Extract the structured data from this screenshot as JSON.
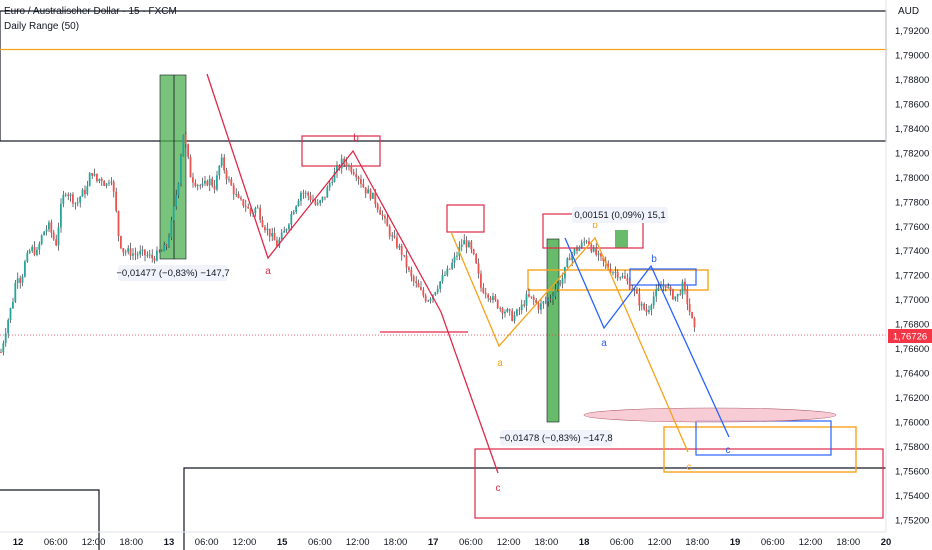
{
  "header": {
    "title": "Euro / Australischer Dollar · 15 · FXCM",
    "indicator": "Daily Range (50)",
    "currency": "AUD"
  },
  "colors": {
    "up": "#26a69a",
    "down": "#ef5350",
    "pattern_red": "#e0294a",
    "orange": "#f7a21b",
    "blue": "#2962ff",
    "black": "#131722",
    "green_fill": "#4caf50",
    "price_tag": "#f23645"
  },
  "chart_data": {
    "type": "candlestick",
    "symbol": "EUR/AUD",
    "timeframe": "15",
    "ylim": [
      1.751,
      1.7945
    ],
    "y_ticks": [
      "1,79200",
      "1,79000",
      "1,78800",
      "1,78600",
      "1,78400",
      "1,78200",
      "1,78000",
      "1,77800",
      "1,77600",
      "1,77400",
      "1,77200",
      "1,77000",
      "1,76800",
      "1,76600",
      "1,76400",
      "1,76200",
      "1,76000",
      "1,75800",
      "1,75600",
      "1,75400",
      "1,75200"
    ],
    "x_ticks": [
      "12",
      "06:00",
      "12:00",
      "18:00",
      "13",
      "06:00",
      "12:00",
      "15",
      "06:00",
      "12:00",
      "18:00",
      "17",
      "06:00",
      "12:00",
      "18:00",
      "18",
      "06:00",
      "12:00",
      "18:00",
      "19",
      "06:00",
      "12:00",
      "18:00",
      "20"
    ],
    "last_price": "1,76726",
    "path_points": [
      [
        0,
        1.7657
      ],
      [
        6,
        1.768
      ],
      [
        12,
        1.77
      ],
      [
        16,
        1.7722
      ],
      [
        20,
        1.7715
      ],
      [
        24,
        1.773
      ],
      [
        30,
        1.7742
      ],
      [
        36,
        1.7738
      ],
      [
        42,
        1.7755
      ],
      [
        48,
        1.776
      ],
      [
        55,
        1.7745
      ],
      [
        60,
        1.7775
      ],
      [
        64,
        1.779
      ],
      [
        70,
        1.7784
      ],
      [
        76,
        1.7778
      ],
      [
        80,
        1.7786
      ],
      [
        86,
        1.779
      ],
      [
        90,
        1.7806
      ],
      [
        96,
        1.7797
      ],
      [
        100,
        1.78
      ],
      [
        105,
        1.7793
      ],
      [
        110,
        1.7802
      ],
      [
        114,
        1.778
      ],
      [
        118,
        1.775
      ],
      [
        122,
        1.774
      ],
      [
        128,
        1.7739
      ],
      [
        134,
        1.7737
      ],
      [
        140,
        1.7738
      ],
      [
        146,
        1.7736
      ],
      [
        152,
        1.7734
      ],
      [
        158,
        1.7738
      ],
      [
        162,
        1.774
      ],
      [
        166,
        1.7745
      ],
      [
        170,
        1.776
      ],
      [
        174,
        1.778
      ],
      [
        178,
        1.78
      ],
      [
        182,
        1.7838
      ],
      [
        186,
        1.782
      ],
      [
        190,
        1.78
      ],
      [
        196,
        1.7795
      ],
      [
        202,
        1.7792
      ],
      [
        208,
        1.7798
      ],
      [
        214,
        1.7792
      ],
      [
        220,
        1.7815
      ],
      [
        226,
        1.78
      ],
      [
        232,
        1.779
      ],
      [
        238,
        1.778
      ],
      [
        244,
        1.7778
      ],
      [
        250,
        1.777
      ],
      [
        256,
        1.7776
      ],
      [
        262,
        1.7762
      ],
      [
        268,
        1.7755
      ],
      [
        276,
        1.7745
      ],
      [
        284,
        1.7756
      ],
      [
        292,
        1.7773
      ],
      [
        300,
        1.7788
      ],
      [
        308,
        1.7785
      ],
      [
        316,
        1.7776
      ],
      [
        324,
        1.7785
      ],
      [
        330,
        1.7798
      ],
      [
        336,
        1.7806
      ],
      [
        342,
        1.7814
      ],
      [
        348,
        1.7809
      ],
      [
        356,
        1.7803
      ],
      [
        364,
        1.779
      ],
      [
        372,
        1.7784
      ],
      [
        380,
        1.7771
      ],
      [
        390,
        1.7752
      ],
      [
        400,
        1.774
      ],
      [
        410,
        1.7718
      ],
      [
        420,
        1.7706
      ],
      [
        426,
        1.77
      ],
      [
        432,
        1.7705
      ],
      [
        440,
        1.7716
      ],
      [
        448,
        1.7724
      ],
      [
        456,
        1.7737
      ],
      [
        462,
        1.7748
      ],
      [
        468,
        1.7744
      ],
      [
        474,
        1.7732
      ],
      [
        480,
        1.771
      ],
      [
        486,
        1.7706
      ],
      [
        492,
        1.77
      ],
      [
        500,
        1.7693
      ],
      [
        506,
        1.769
      ],
      [
        512,
        1.7685
      ],
      [
        520,
        1.7693
      ],
      [
        526,
        1.7702
      ],
      [
        532,
        1.77
      ],
      [
        538,
        1.7694
      ],
      [
        544,
        1.7698
      ],
      [
        550,
        1.7702
      ],
      [
        556,
        1.7712
      ],
      [
        562,
        1.7718
      ],
      [
        568,
        1.7735
      ],
      [
        574,
        1.774
      ],
      [
        580,
        1.7744
      ],
      [
        586,
        1.775
      ],
      [
        592,
        1.774
      ],
      [
        598,
        1.7734
      ],
      [
        604,
        1.7729
      ],
      [
        610,
        1.7724
      ],
      [
        616,
        1.7722
      ],
      [
        622,
        1.7718
      ],
      [
        628,
        1.7713
      ],
      [
        634,
        1.7706
      ],
      [
        640,
        1.7695
      ],
      [
        646,
        1.769
      ],
      [
        652,
        1.7702
      ],
      [
        658,
        1.7708
      ],
      [
        664,
        1.7714
      ],
      [
        670,
        1.7704
      ],
      [
        676,
        1.7702
      ],
      [
        682,
        1.7712
      ],
      [
        688,
        1.7693
      ],
      [
        694,
        1.7673
      ]
    ],
    "annotations": {
      "measure_1": "−0,01477 (−0,83%) −147,7",
      "measure_2": "−0,01478 (−0,83%) −147,8",
      "measure_3": "0,00151 (0,09%) 15,1",
      "wave_labels": [
        "a",
        "b",
        "c",
        "a",
        "b",
        "c",
        "a",
        "b",
        "c"
      ]
    }
  }
}
